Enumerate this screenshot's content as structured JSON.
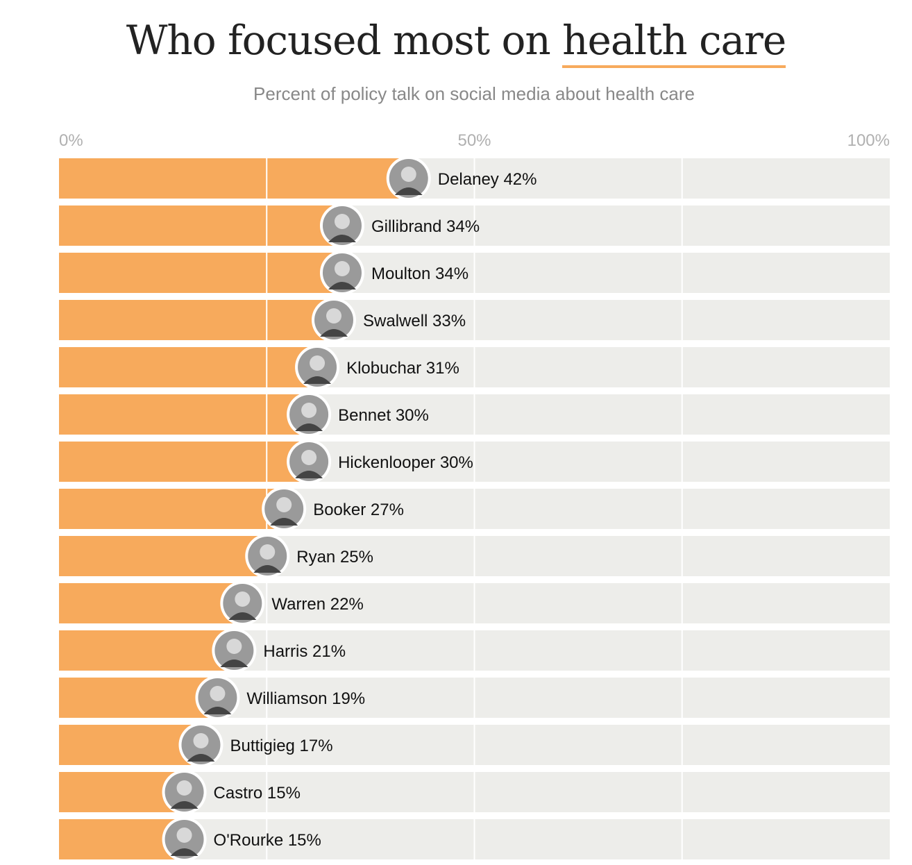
{
  "title_main": "Who focused most on ",
  "title_highlight": "health care",
  "subtitle": "Percent of policy talk on social media about health care",
  "colors": {
    "bar": "#f7aa5c",
    "track": "#ededea",
    "gridline": "#ffffff",
    "avatar_ring": "#ffffff",
    "avatar_fill": "#9a9a9a"
  },
  "chart_data": {
    "type": "bar",
    "orientation": "horizontal",
    "xlim": [
      0,
      100
    ],
    "ticks": [
      {
        "value": 0,
        "label": "0%"
      },
      {
        "value": 50,
        "label": "50%"
      },
      {
        "value": 100,
        "label": "100%"
      }
    ],
    "categories": [
      "Delaney",
      "Gillibrand",
      "Moulton",
      "Swalwell",
      "Klobuchar",
      "Bennet",
      "Hickenlooper",
      "Booker",
      "Ryan",
      "Warren",
      "Harris",
      "Williamson",
      "Buttigieg",
      "Castro",
      "O'Rourke"
    ],
    "values": [
      42,
      34,
      34,
      33,
      31,
      30,
      30,
      27,
      25,
      22,
      21,
      19,
      17,
      15,
      15
    ],
    "labels": [
      "Delaney 42%",
      "Gillibrand 34%",
      "Moulton 34%",
      "Swalwell 33%",
      "Klobuchar 31%",
      "Bennet 30%",
      "Hickenlooper 30%",
      "Booker 27%",
      "Ryan 25%",
      "Warren 22%",
      "Harris 21%",
      "Williamson 19%",
      "Buttigieg 17%",
      "Castro 15%",
      "O'Rourke 15%"
    ]
  }
}
